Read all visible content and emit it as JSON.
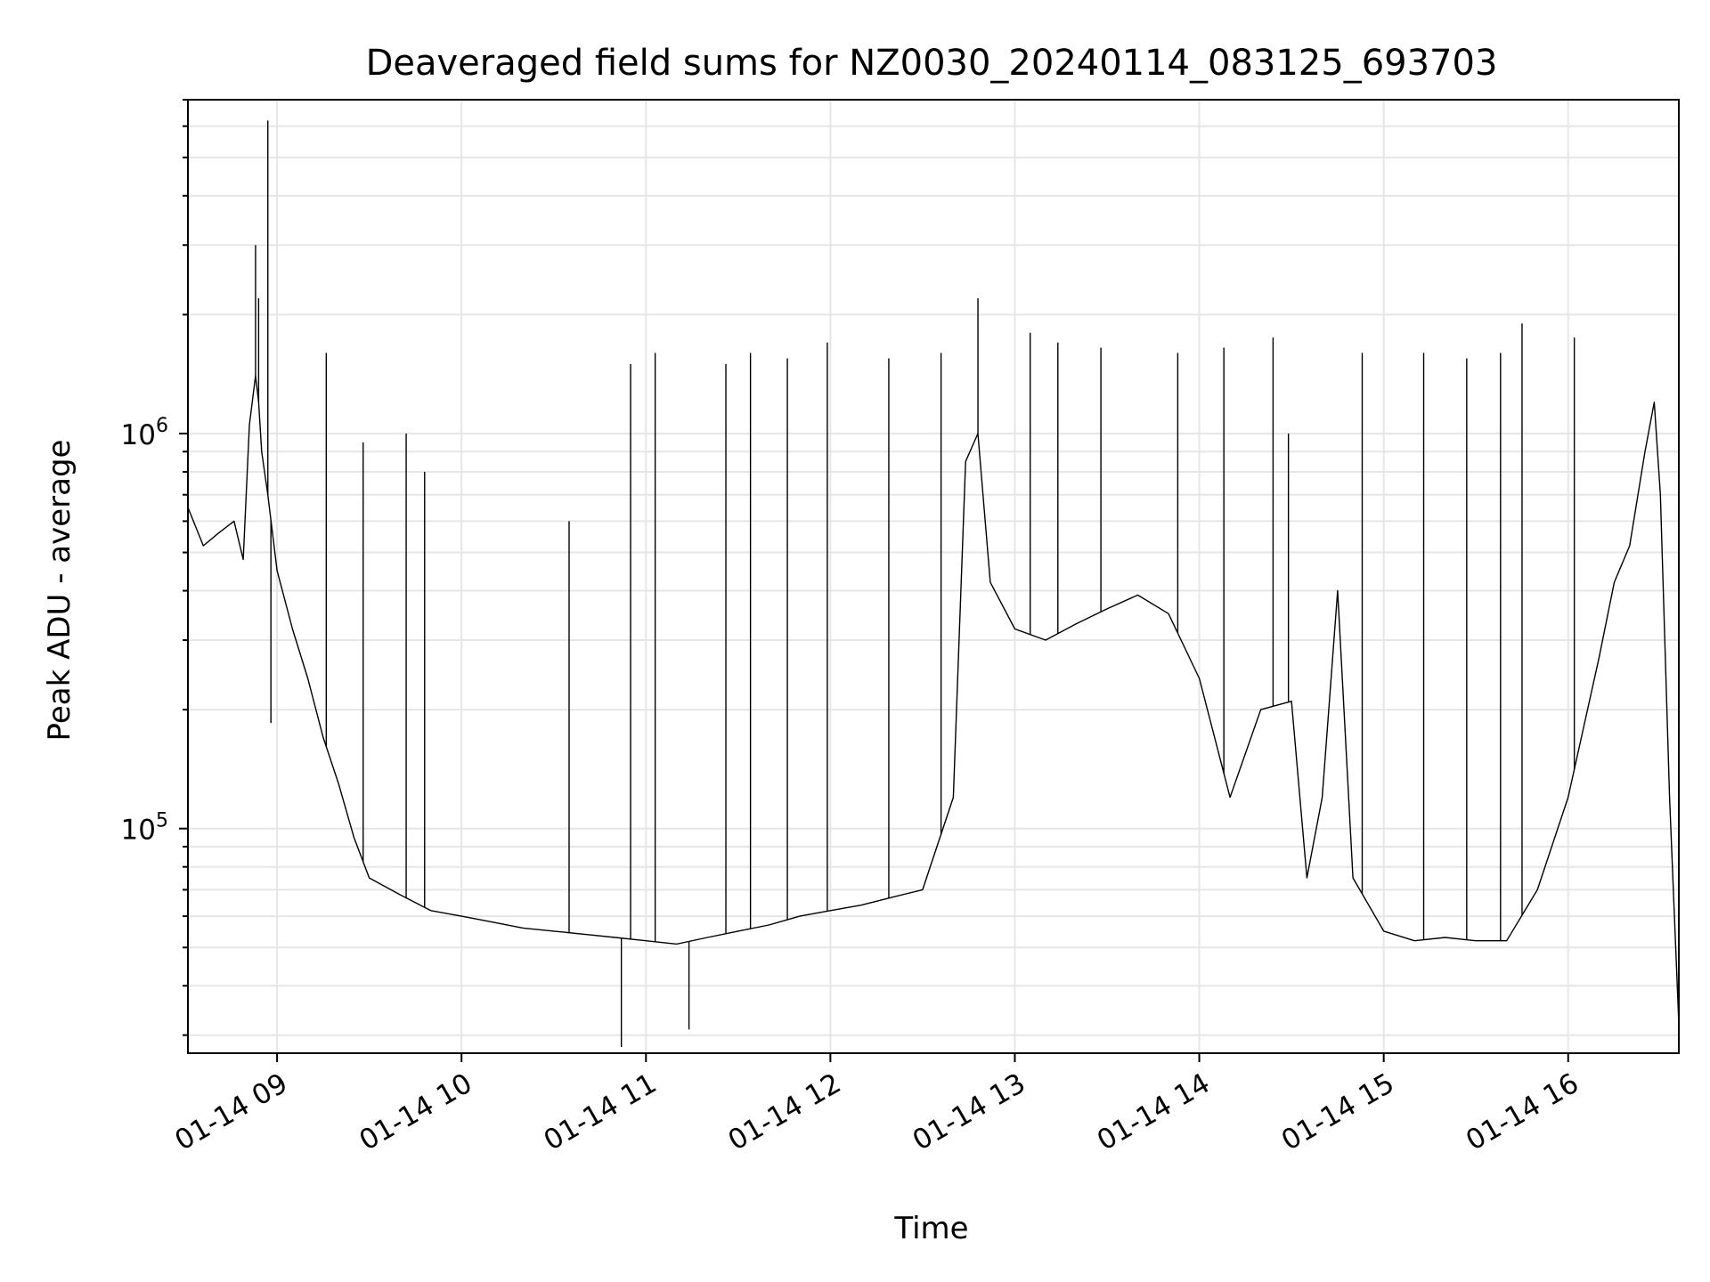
{
  "chart_data": {
    "type": "line",
    "title": "Deaveraged field sums for NZ0030_20240114_083125_693703",
    "xlabel": "Time",
    "ylabel": "Peak ADU - average",
    "y_scale": "log",
    "ylim": [
      27000,
      7000000
    ],
    "xlim": [
      "2024-01-14 08:31",
      "2024-01-14 16:36"
    ],
    "grid": true,
    "line_color": "#000000",
    "grid_color": "#e6e6e6",
    "x_ticks": [
      {
        "value": "2024-01-14 09:00",
        "label": "01-14 09"
      },
      {
        "value": "2024-01-14 10:00",
        "label": "01-14 10"
      },
      {
        "value": "2024-01-14 11:00",
        "label": "01-14 11"
      },
      {
        "value": "2024-01-14 12:00",
        "label": "01-14 12"
      },
      {
        "value": "2024-01-14 13:00",
        "label": "01-14 13"
      },
      {
        "value": "2024-01-14 14:00",
        "label": "01-14 14"
      },
      {
        "value": "2024-01-14 15:00",
        "label": "01-14 15"
      },
      {
        "value": "2024-01-14 16:00",
        "label": "01-14 16"
      }
    ],
    "y_ticks": [
      {
        "value": 100000,
        "base": "10",
        "exp": "5"
      },
      {
        "value": 1000000,
        "base": "10",
        "exp": "6"
      }
    ],
    "series": [
      {
        "x": [
          "2024-01-14 08:31",
          "2024-01-14 08:36",
          "2024-01-14 08:41",
          "2024-01-14 08:46",
          "2024-01-14 08:49",
          "2024-01-14 08:51",
          "2024-01-14 08:53",
          "2024-01-14 08:54",
          "2024-01-14 08:55",
          "2024-01-14 08:57",
          "2024-01-14 09:00",
          "2024-01-14 09:05",
          "2024-01-14 09:10",
          "2024-01-14 09:15",
          "2024-01-14 09:20",
          "2024-01-14 09:25",
          "2024-01-14 09:30",
          "2024-01-14 09:40",
          "2024-01-14 09:50",
          "2024-01-14 10:00",
          "2024-01-14 10:10",
          "2024-01-14 10:20",
          "2024-01-14 10:30",
          "2024-01-14 10:40",
          "2024-01-14 10:50",
          "2024-01-14 11:00",
          "2024-01-14 11:10",
          "2024-01-14 11:20",
          "2024-01-14 11:30",
          "2024-01-14 11:40",
          "2024-01-14 11:50",
          "2024-01-14 12:00",
          "2024-01-14 12:10",
          "2024-01-14 12:20",
          "2024-01-14 12:30",
          "2024-01-14 12:40",
          "2024-01-14 12:44",
          "2024-01-14 12:48",
          "2024-01-14 12:52",
          "2024-01-14 13:00",
          "2024-01-14 13:10",
          "2024-01-14 13:20",
          "2024-01-14 13:30",
          "2024-01-14 13:40",
          "2024-01-14 13:50",
          "2024-01-14 14:00",
          "2024-01-14 14:05",
          "2024-01-14 14:10",
          "2024-01-14 14:20",
          "2024-01-14 14:30",
          "2024-01-14 14:35",
          "2024-01-14 14:40",
          "2024-01-14 14:45",
          "2024-01-14 14:50",
          "2024-01-14 15:00",
          "2024-01-14 15:10",
          "2024-01-14 15:20",
          "2024-01-14 15:30",
          "2024-01-14 15:40",
          "2024-01-14 15:50",
          "2024-01-14 16:00",
          "2024-01-14 16:05",
          "2024-01-14 16:10",
          "2024-01-14 16:15",
          "2024-01-14 16:20",
          "2024-01-14 16:25",
          "2024-01-14 16:28",
          "2024-01-14 16:30",
          "2024-01-14 16:33",
          "2024-01-14 16:36"
        ],
        "y": [
          650000,
          520000,
          560000,
          600000,
          480000,
          1050000,
          1400000,
          1200000,
          900000,
          700000,
          450000,
          320000,
          240000,
          170000,
          130000,
          95000,
          75000,
          68000,
          62000,
          60000,
          58000,
          56000,
          55000,
          54000,
          53000,
          52000,
          51000,
          53000,
          55000,
          57000,
          60000,
          62000,
          64000,
          67000,
          70000,
          120000,
          850000,
          1000000,
          420000,
          320000,
          300000,
          330000,
          360000,
          390000,
          350000,
          240000,
          170000,
          120000,
          200000,
          210000,
          75000,
          120000,
          400000,
          75000,
          55000,
          52000,
          53000,
          52000,
          52000,
          70000,
          120000,
          180000,
          270000,
          420000,
          520000,
          900000,
          1200000,
          700000,
          120000,
          32000
        ]
      }
    ],
    "spikes": [
      {
        "x": "2024-01-14 08:53",
        "y": 3000000
      },
      {
        "x": "2024-01-14 08:54",
        "y": 2200000
      },
      {
        "x": "2024-01-14 08:57",
        "y": 6200000
      },
      {
        "x": "2024-01-14 08:58",
        "y": 185000
      },
      {
        "x": "2024-01-14 09:16",
        "y": 1600000
      },
      {
        "x": "2024-01-14 09:28",
        "y": 950000
      },
      {
        "x": "2024-01-14 09:42",
        "y": 1000000
      },
      {
        "x": "2024-01-14 09:48",
        "y": 800000
      },
      {
        "x": "2024-01-14 10:35",
        "y": 600000
      },
      {
        "x": "2024-01-14 10:55",
        "y": 1500000
      },
      {
        "x": "2024-01-14 11:03",
        "y": 1600000
      },
      {
        "x": "2024-01-14 11:26",
        "y": 1500000
      },
      {
        "x": "2024-01-14 11:34",
        "y": 1600000
      },
      {
        "x": "2024-01-14 11:46",
        "y": 1550000
      },
      {
        "x": "2024-01-14 11:59",
        "y": 1700000
      },
      {
        "x": "2024-01-14 12:19",
        "y": 1550000
      },
      {
        "x": "2024-01-14 12:36",
        "y": 1600000
      },
      {
        "x": "2024-01-14 12:48",
        "y": 2200000
      },
      {
        "x": "2024-01-14 13:05",
        "y": 1800000
      },
      {
        "x": "2024-01-14 13:14",
        "y": 1700000
      },
      {
        "x": "2024-01-14 13:28",
        "y": 1650000
      },
      {
        "x": "2024-01-14 13:53",
        "y": 1600000
      },
      {
        "x": "2024-01-14 14:08",
        "y": 1650000
      },
      {
        "x": "2024-01-14 14:24",
        "y": 1750000
      },
      {
        "x": "2024-01-14 14:29",
        "y": 1000000
      },
      {
        "x": "2024-01-14 14:53",
        "y": 1600000
      },
      {
        "x": "2024-01-14 15:13",
        "y": 1600000
      },
      {
        "x": "2024-01-14 15:27",
        "y": 1550000
      },
      {
        "x": "2024-01-14 15:38",
        "y": 1600000
      },
      {
        "x": "2024-01-14 15:45",
        "y": 1900000
      },
      {
        "x": "2024-01-14 16:02",
        "y": 1750000
      },
      {
        "x": "2024-01-14 10:52",
        "y": 28000
      },
      {
        "x": "2024-01-14 11:14",
        "y": 31000
      }
    ]
  }
}
